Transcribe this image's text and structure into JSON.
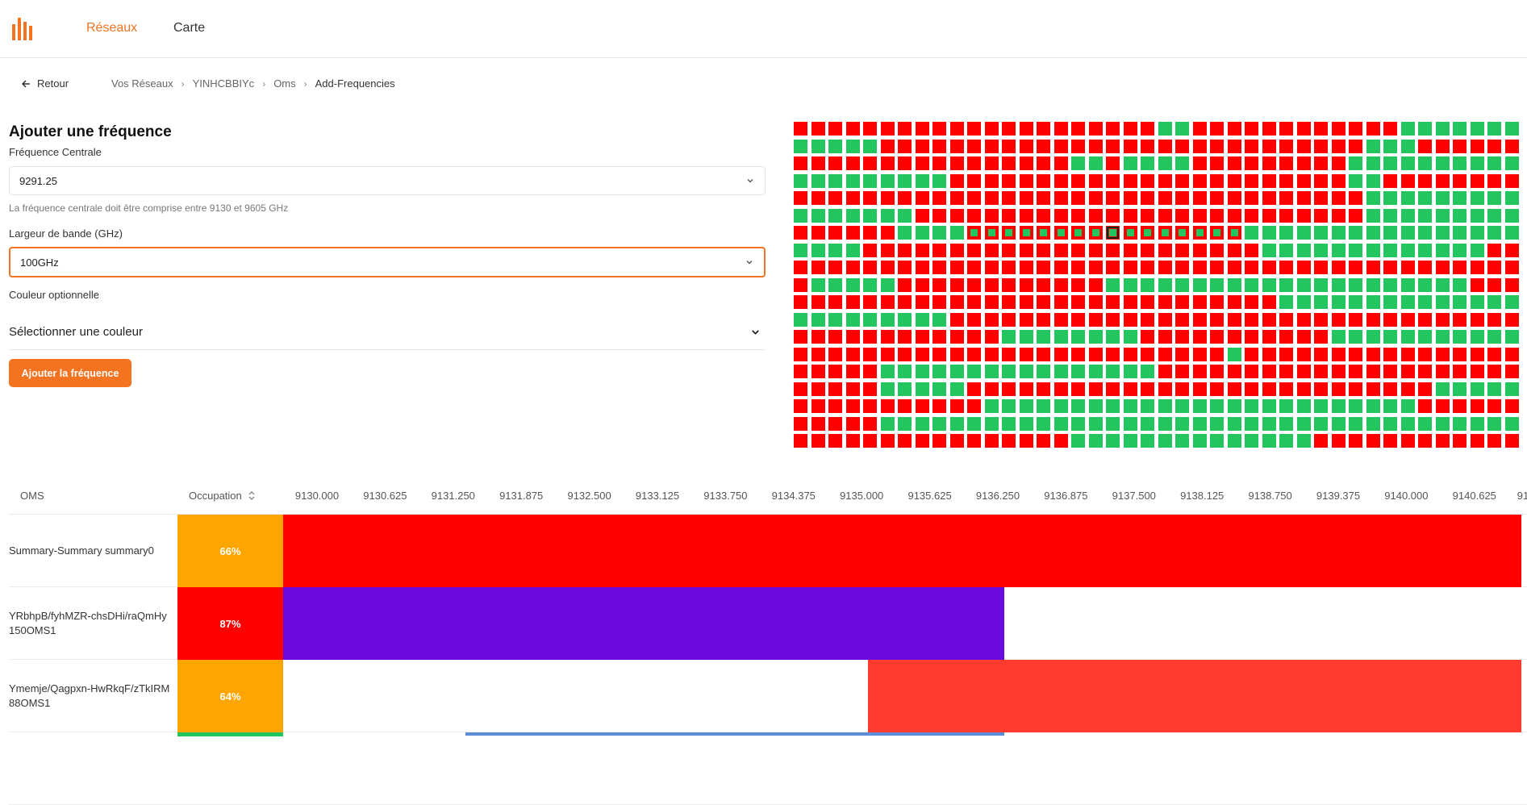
{
  "header": {
    "logo_icon": "bars-logo",
    "nav": [
      {
        "label": "Réseaux",
        "active": true
      },
      {
        "label": "Carte",
        "active": false
      }
    ]
  },
  "breadcrumb": {
    "back_label": "Retour",
    "items": [
      "Vos Réseaux",
      "YINHCBBIYc",
      "Oms",
      "Add-Frequencies"
    ]
  },
  "form": {
    "title": "Ajouter une fréquence",
    "center_label": "Fréquence Centrale",
    "center_value": "9291.25",
    "center_hint": "La fréquence centrale doit être comprise entre 9130 et 9605 GHz",
    "bandwidth_label": "Largeur de bande (GHz)",
    "bandwidth_value": "100GHz",
    "color_label": "Couleur optionnelle",
    "color_select_label": "Sélectionner une couleur",
    "submit_label": "Ajouter la fréquence"
  },
  "grid": {
    "colors": {
      "occupied": "#ff0000",
      "free": "#22c55e",
      "selected_border": "#0a2a18"
    },
    "rows": [
      "RRRRRRRRRRRRRRRRRRRRRGGRRRRRRRRRRRRGGGGGGG",
      "GGGGGRRRRRRRRRRRRRRRRRRRRRRRRRRRRGGGRRRRRR",
      "RRRRRRRRRRRRRRRRGGRGGGGRRRRRRRRRGGGGGGGGGG",
      "GGGGGGGGGRRRRRRRRRRRRRRRRRRRRRRRGGRRRRRRRR",
      "RRRRRRRRRRRRRRRRRRRRRRRRRRRRRRRRRGGGGGGGGG",
      "GGGGGGGRRRRRRRRRRRRRRRRRRRRRRRRRRGGGGGGGGG",
      "RRRRRRGGGGGGGGGGGGGGGGGGGGGGGGGGGGGGGGGGGG",
      "GGGGRRRRRRRRRRRRRRRRRRRRRRRGGGGGGGGGGGGGRR",
      "RRRRRRRRRRRRRRRRRRRRRRRRRRRRRRRRRRRRRRRRRR",
      "RGGGGGRRRRRRRRRRRRGGGGGGGGGGGGGGGGGGGGGRRR",
      "RRRRRRRRRRRRRRRRRRRRRRRRRRRRGGGGGGGGGGGGGG",
      "GGGGGGGGGRRRRRRRRRRRRRRRRRRRRRRRRRRRRRRRRR",
      "RRRRRRRRRRRRGGGGGGGGRRRRRRRRRRRGGGGGGGGGGG",
      "RRRRRRRRRRRRRRRRRRRRRRRRRGRRRRRRRRRRRRRRRR",
      "RRRRRGGGGGGGGGGGGGGGGRRRRRRRRRRRRRRRRRRRRR",
      "RRRRRGGGGGRRRRRRRRRRRRRRRRRRRRRRRRRRRGGGGG",
      "RRRRRRRRRRRGGGGGGGGGGGGGGGGGGGGGGGGGRRRRRR",
      "RRRRRGGGGGGGGGGGGGGGGGGGGGGGGGGGGGGGGGGGGG",
      "RRRRRRRRRRRRRRRRGGGGGGGGGGGGGGRRRRRRRRRRRR"
    ],
    "dotted": {
      "row": 6,
      "from": 10,
      "to": 25
    },
    "selected": {
      "row": 6,
      "col": 18
    }
  },
  "table": {
    "headers": {
      "oms": "OMS",
      "occupation": "Occupation"
    },
    "sort_icon": "sort-icon",
    "freq_axis": [
      "9130.000",
      "9130.625",
      "9131.250",
      "9131.875",
      "9132.500",
      "9133.125",
      "9133.750",
      "9134.375",
      "9135.000",
      "9135.625",
      "9136.250",
      "9136.875",
      "9137.500",
      "9138.125",
      "9138.750",
      "9139.375",
      "9140.000",
      "9140.625",
      "91"
    ],
    "rows": [
      {
        "name": "Summary-Summary summary0",
        "occupation": "66%",
        "occ_color": "#ffa500",
        "bands": [
          {
            "start": 9129.5,
            "end": 9142.94,
            "color": "#ff0000"
          }
        ]
      },
      {
        "name": "YRbhpB/fyhMZR-chsDHi/raQmHy 150OMS1",
        "occupation": "87%",
        "occ_color": "#ff0000",
        "bands": [
          {
            "start": 9129.5,
            "end": 9136.31,
            "color": "#6b0ade"
          }
        ]
      },
      {
        "name": "Ymemje/Qagpxn-HwRkqF/zTkIRM 88OMS1",
        "occupation": "64%",
        "occ_color": "#ffa500",
        "bands": [
          {
            "start": 9135.06,
            "end": 9142.94,
            "color": "#ff3b2f"
          }
        ]
      }
    ],
    "partial_row": {
      "occ_color": "#22c55e",
      "strip_start": 9131.38,
      "strip_end": 9136.31,
      "strip_color": "#5b8ed6"
    }
  }
}
